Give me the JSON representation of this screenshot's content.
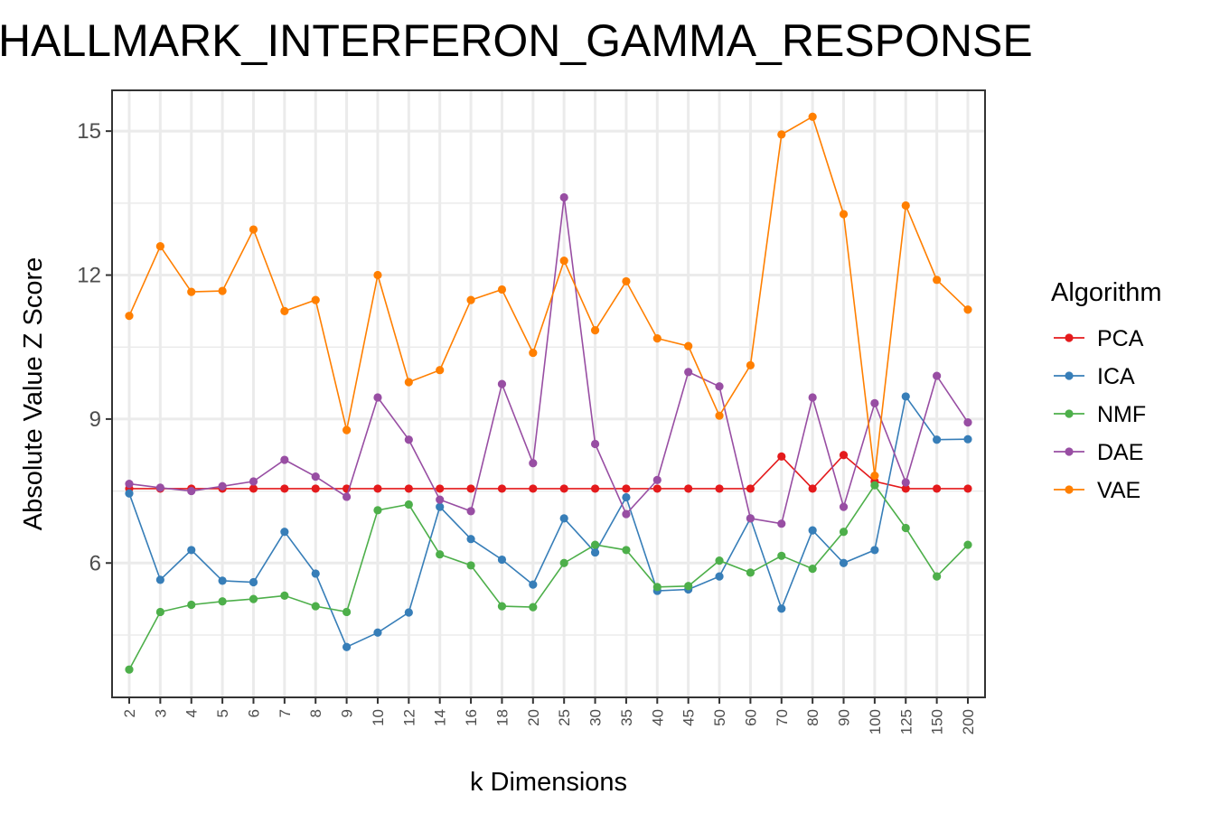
{
  "chart_data": {
    "type": "line",
    "title": "HALLMARK_INTERFERON_GAMMA_RESPONSE",
    "xlabel": "k Dimensions",
    "ylabel": "Absolute Value Z Score",
    "categories": [
      "2",
      "3",
      "4",
      "5",
      "6",
      "7",
      "8",
      "9",
      "10",
      "12",
      "14",
      "16",
      "18",
      "20",
      "25",
      "30",
      "35",
      "40",
      "45",
      "50",
      "60",
      "70",
      "80",
      "90",
      "100",
      "125",
      "150",
      "200"
    ],
    "yticks": [
      6,
      9,
      12,
      15
    ],
    "ylim": [
      3.2,
      15.85
    ],
    "grid": true,
    "legend": {
      "title": "Algorithm",
      "position": "right"
    },
    "series": [
      {
        "name": "PCA",
        "color": "#E41A1C",
        "values": [
          7.55,
          7.55,
          7.55,
          7.55,
          7.55,
          7.55,
          7.55,
          7.55,
          7.55,
          7.55,
          7.55,
          7.55,
          7.55,
          7.55,
          7.55,
          7.55,
          7.55,
          7.55,
          7.55,
          7.55,
          7.55,
          8.22,
          7.55,
          8.25,
          7.7,
          7.55,
          7.55,
          7.55
        ]
      },
      {
        "name": "ICA",
        "color": "#377EB8",
        "values": [
          7.45,
          5.65,
          6.27,
          5.63,
          5.6,
          6.65,
          5.78,
          4.25,
          4.55,
          4.97,
          7.17,
          6.5,
          6.07,
          5.55,
          6.93,
          6.22,
          7.37,
          5.42,
          5.45,
          5.72,
          6.93,
          5.05,
          6.68,
          6.0,
          6.27,
          9.47,
          8.57,
          8.58
        ]
      },
      {
        "name": "NMF",
        "color": "#4DAF4A",
        "values": [
          3.78,
          4.98,
          5.13,
          5.2,
          5.25,
          5.32,
          5.1,
          4.98,
          7.1,
          7.22,
          6.18,
          5.95,
          5.1,
          5.08,
          6.0,
          6.38,
          6.27,
          5.5,
          5.52,
          6.05,
          5.8,
          6.15,
          5.88,
          6.65,
          7.62,
          6.73,
          5.72,
          6.38
        ]
      },
      {
        "name": "DAE",
        "color": "#984EA3",
        "values": [
          7.65,
          7.57,
          7.5,
          7.6,
          7.7,
          8.15,
          7.8,
          7.38,
          9.45,
          8.57,
          7.32,
          7.08,
          9.73,
          8.08,
          13.62,
          8.48,
          7.02,
          7.73,
          9.98,
          9.68,
          6.93,
          6.82,
          9.45,
          7.17,
          9.33,
          7.68,
          9.9,
          8.93
        ]
      },
      {
        "name": "VAE",
        "color": "#FF7F00",
        "values": [
          11.15,
          12.6,
          11.65,
          11.67,
          12.95,
          11.25,
          11.48,
          8.77,
          12.0,
          9.77,
          10.02,
          11.48,
          11.7,
          10.38,
          12.3,
          10.85,
          11.87,
          10.68,
          10.52,
          9.07,
          10.12,
          14.93,
          15.3,
          13.27,
          7.82,
          13.45,
          11.9,
          11.28
        ]
      }
    ]
  }
}
